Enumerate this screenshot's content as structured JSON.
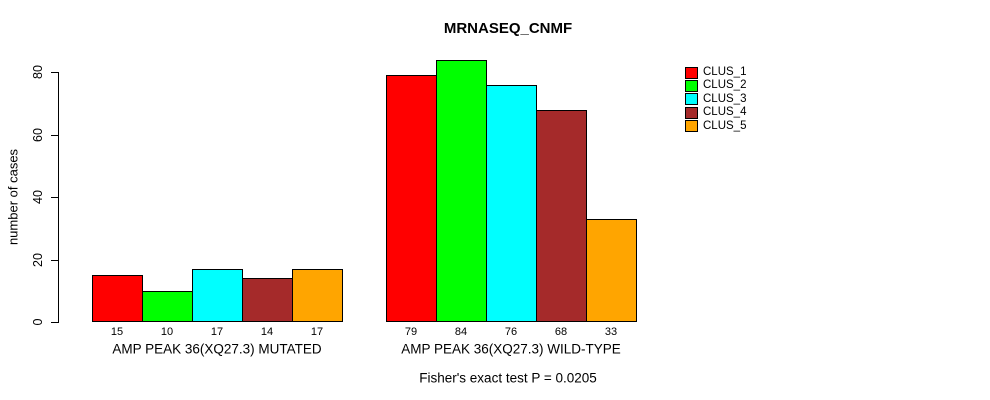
{
  "page": {
    "background": "#FFFFFF",
    "text_color": "#000000"
  },
  "chart_data": {
    "type": "bar",
    "title": "MRNASEQ_CNMF",
    "ylabel": "number of cases",
    "xlabel": "",
    "ylim": [
      0,
      80
    ],
    "yticks": [
      0,
      20,
      40,
      60,
      80
    ],
    "grid": false,
    "legend_position": "right-outside-top",
    "categories": [
      "AMP PEAK 36(XQ27.3) MUTATED",
      "AMP PEAK 36(XQ27.3) WILD-TYPE"
    ],
    "series": [
      {
        "name": "CLUS_1",
        "color": "#FF0000",
        "values": [
          15,
          79
        ]
      },
      {
        "name": "CLUS_2",
        "color": "#00FF00",
        "values": [
          10,
          84
        ]
      },
      {
        "name": "CLUS_3",
        "color": "#00FFFF",
        "values": [
          17,
          76
        ]
      },
      {
        "name": "CLUS_4",
        "color": "#A52A2A",
        "values": [
          14,
          68
        ]
      },
      {
        "name": "CLUS_5",
        "color": "#FFA500",
        "values": [
          17,
          33
        ]
      }
    ],
    "show_bar_values": true,
    "annotation": "Fisher's exact test P = 0.0205"
  }
}
